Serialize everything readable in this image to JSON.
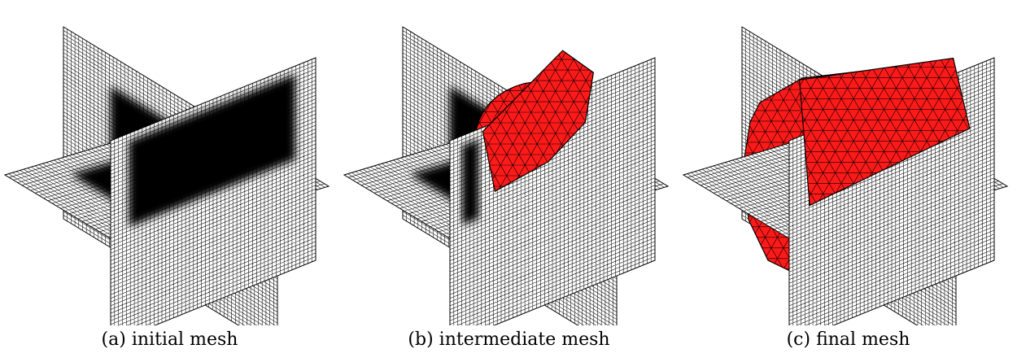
{
  "figure": {
    "panels": [
      {
        "id": "a",
        "caption": "(a) initial mesh"
      },
      {
        "id": "b",
        "caption": "(b) intermediate mesh"
      },
      {
        "id": "c",
        "caption": "(c) final mesh"
      }
    ],
    "colors": {
      "plane_fill": "#ffffff",
      "grid_line": "#000000",
      "field_dark": "#000000",
      "mesh_fill": "#ff1a1a",
      "mesh_edge": "#000000"
    }
  }
}
